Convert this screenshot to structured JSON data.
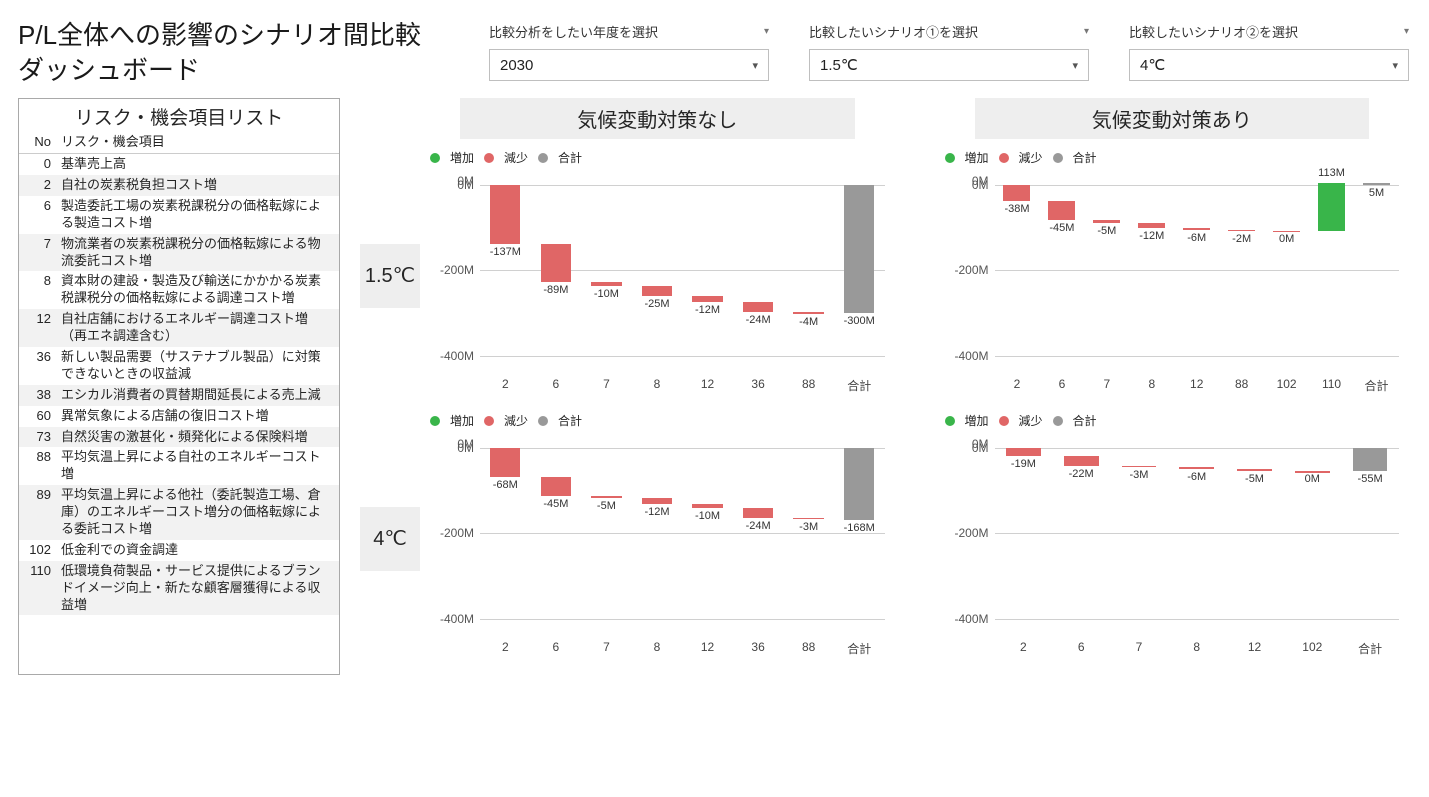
{
  "title_line1": "P/L全体への影響のシナリオ間比較",
  "title_line2": "ダッシュボード",
  "filters": {
    "year": {
      "label": "比較分析をしたい年度を選択",
      "value": "2030"
    },
    "scenario1": {
      "label": "比較したいシナリオ①を選択",
      "value": "1.5℃"
    },
    "scenario2": {
      "label": "比較したいシナリオ②を選択",
      "value": "4℃"
    }
  },
  "sidebar": {
    "title": "リスク・機会項目リスト",
    "col_no": "No",
    "col_item": "リスク・機会項目",
    "rows": [
      {
        "no": "0",
        "text": "基準売上高"
      },
      {
        "no": "2",
        "text": "自社の炭素税負担コスト増"
      },
      {
        "no": "6",
        "text": "製造委託工場の炭素税課税分の価格転嫁による製造コスト増"
      },
      {
        "no": "7",
        "text": "物流業者の炭素税課税分の価格転嫁による物流委託コスト増"
      },
      {
        "no": "8",
        "text": "資本財の建設・製造及び輸送にかかかる炭素税課税分の価格転嫁による調達コスト増"
      },
      {
        "no": "12",
        "text": "自社店舗におけるエネルギー調達コスト増（再エネ調達含む）"
      },
      {
        "no": "36",
        "text": "新しい製品需要（サステナブル製品）に対策できないときの収益減"
      },
      {
        "no": "38",
        "text": "エシカル消費者の買替期間延長による売上減"
      },
      {
        "no": "60",
        "text": "異常気象による店舗の復旧コスト増"
      },
      {
        "no": "73",
        "text": "自然災害の激甚化・頻発化による保険料増"
      },
      {
        "no": "88",
        "text": "平均気温上昇による自社のエネルギーコスト増"
      },
      {
        "no": "89",
        "text": "平均気温上昇による他社（委託製造工場、倉庫）のエネルギーコスト増分の価格転嫁による委託コスト増"
      },
      {
        "no": "102",
        "text": "低金利での資金調達"
      },
      {
        "no": "110",
        "text": "低環境負荷製品・サービス提供によるブランドイメージ向上・新たな顧客層獲得による収益増"
      }
    ]
  },
  "legend": {
    "increase": "増加",
    "decrease": "減少",
    "total": "合計"
  },
  "colors": {
    "increase": "#39b54a",
    "decrease": "#e06666",
    "total": "#999999",
    "grid": "#d0d0d0"
  },
  "col_headers": {
    "left": "気候変動対策なし",
    "right": "気候変動対策あり"
  },
  "row_headers": {
    "top": "1.5℃",
    "bottom": "4℃"
  },
  "yaxis": {
    "ticks": [
      "0M",
      "-200M",
      "-400M"
    ],
    "min": -450,
    "max": 30,
    "zero_pct": 6.25
  },
  "charts": {
    "c11": {
      "items": [
        {
          "x": "2",
          "val": -137,
          "type": "dec",
          "label": "-137M",
          "start": 0
        },
        {
          "x": "6",
          "val": -89,
          "type": "dec",
          "label": "-89M",
          "start": -137
        },
        {
          "x": "7",
          "val": -10,
          "type": "dec",
          "label": "-10M",
          "start": -226
        },
        {
          "x": "8",
          "val": -25,
          "type": "dec",
          "label": "-25M",
          "start": -236
        },
        {
          "x": "12",
          "val": -12,
          "type": "dec",
          "label": "-12M",
          "start": -261
        },
        {
          "x": "36",
          "val": -24,
          "type": "dec",
          "label": "-24M",
          "start": -273
        },
        {
          "x": "88",
          "val": -4,
          "type": "dec",
          "label": "-4M",
          "start": -297
        },
        {
          "x": "合計",
          "val": -300,
          "type": "tot",
          "label": "-300M",
          "start": 0
        }
      ]
    },
    "c12": {
      "items": [
        {
          "x": "2",
          "val": -38,
          "type": "dec",
          "label": "-38M",
          "start": 0
        },
        {
          "x": "6",
          "val": -45,
          "type": "dec",
          "label": "-45M",
          "start": -38
        },
        {
          "x": "7",
          "val": -5,
          "type": "dec",
          "label": "-5M",
          "start": -83
        },
        {
          "x": "8",
          "val": -12,
          "type": "dec",
          "label": "-12M",
          "start": -88
        },
        {
          "x": "12",
          "val": -6,
          "type": "dec",
          "label": "-6M",
          "start": -100
        },
        {
          "x": "88",
          "val": -2,
          "type": "dec",
          "label": "-2M",
          "start": -106
        },
        {
          "x": "102",
          "val": 0,
          "type": "dec",
          "label": "0M",
          "start": -108
        },
        {
          "x": "110",
          "val": 113,
          "type": "inc",
          "label": "113M",
          "start": -108
        },
        {
          "x": "合計",
          "val": 5,
          "type": "tot",
          "label": "5M",
          "start": 0
        }
      ]
    },
    "c21": {
      "items": [
        {
          "x": "2",
          "val": -68,
          "type": "dec",
          "label": "-68M",
          "start": 0
        },
        {
          "x": "6",
          "val": -45,
          "type": "dec",
          "label": "-45M",
          "start": -68
        },
        {
          "x": "7",
          "val": -5,
          "type": "dec",
          "label": "-5M",
          "start": -113
        },
        {
          "x": "8",
          "val": -12,
          "type": "dec",
          "label": "-12M",
          "start": -118
        },
        {
          "x": "12",
          "val": -10,
          "type": "dec",
          "label": "-10M",
          "start": -130
        },
        {
          "x": "36",
          "val": -24,
          "type": "dec",
          "label": "-24M",
          "start": -140
        },
        {
          "x": "88",
          "val": -3,
          "type": "dec",
          "label": "-3M",
          "start": -164
        },
        {
          "x": "合計",
          "val": -168,
          "type": "tot",
          "label": "-168M",
          "start": 0
        }
      ]
    },
    "c22": {
      "items": [
        {
          "x": "2",
          "val": -19,
          "type": "dec",
          "label": "-19M",
          "start": 0
        },
        {
          "x": "6",
          "val": -22,
          "type": "dec",
          "label": "-22M",
          "start": -19
        },
        {
          "x": "7",
          "val": -3,
          "type": "dec",
          "label": "-3M",
          "start": -41
        },
        {
          "x": "8",
          "val": -6,
          "type": "dec",
          "label": "-6M",
          "start": -44
        },
        {
          "x": "12",
          "val": -5,
          "type": "dec",
          "label": "-5M",
          "start": -50
        },
        {
          "x": "102",
          "val": 0,
          "type": "dec",
          "label": "0M",
          "start": -55
        },
        {
          "x": "合計",
          "val": -55,
          "type": "tot",
          "label": "-55M",
          "start": 0
        }
      ]
    }
  }
}
